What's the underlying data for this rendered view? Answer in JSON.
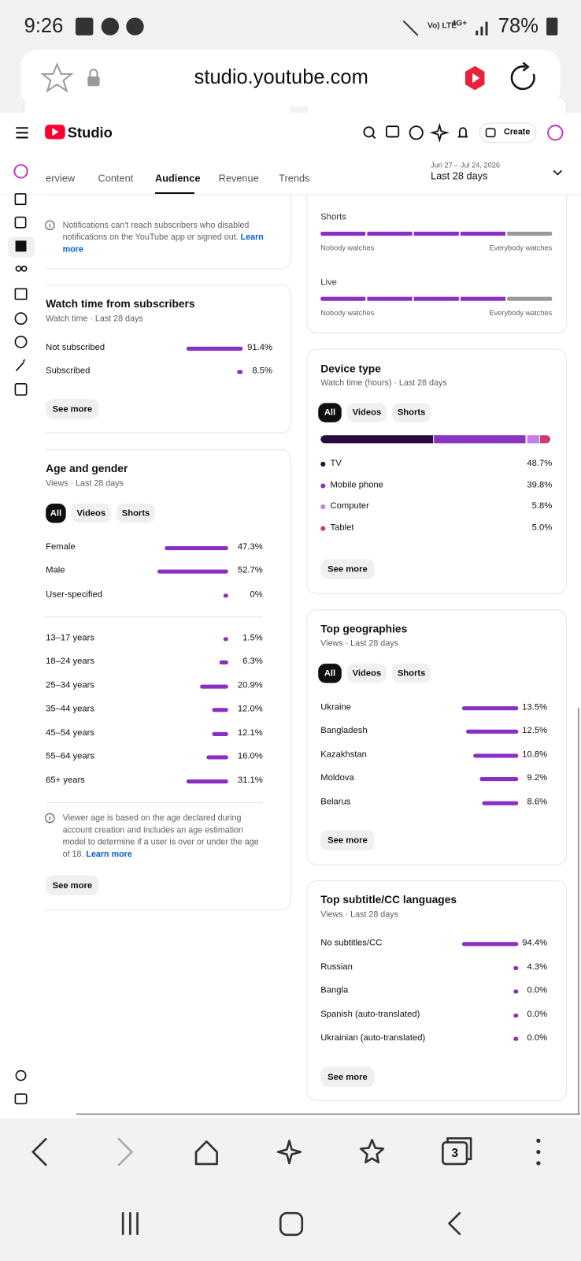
{
  "status_bar": {
    "time": "9:26",
    "network": "Vo) LTE",
    "network_2": "4G+",
    "battery": "78%"
  },
  "browser": {
    "url": "studio.youtube.com",
    "open_tabs": "3"
  },
  "header": {
    "logo": "Studio",
    "create_button": "Create"
  },
  "tabs": [
    "erview",
    "Content",
    "Audience",
    "Revenue",
    "Trends"
  ],
  "date_range": {
    "dates": "Jun 27 – Jul 24, 2026",
    "period": "Last 28 days"
  },
  "left_column": {
    "notification_note": {
      "text": "Notifications can't reach subscribers who disabled notifications on the YouTube app or signed out.",
      "link": "Learn more"
    },
    "subscribers": {
      "title": "Watch time from subscribers",
      "subtitle": "Watch time · Last 28 days",
      "bar_color": "#8b2fc2",
      "rows": [
        {
          "label": "Not subscribed",
          "value": 91.4,
          "value_label": "91.4%"
        },
        {
          "label": "Subscribed",
          "value": 8.5,
          "value_label": "8.5%"
        }
      ],
      "button": "See more"
    },
    "age_gender": {
      "title": "Age and gender",
      "subtitle": "Views · Last 28 days",
      "bar_color": "#8b2fc2",
      "filters": [
        "All",
        "Videos",
        "Shorts"
      ],
      "gender": [
        {
          "label": "Female",
          "value": 47.3,
          "value_label": "47.3%"
        },
        {
          "label": "Male",
          "value": 52.7,
          "value_label": "52.7%"
        },
        {
          "label": "User-specified",
          "value": 0,
          "value_label": "0%"
        }
      ],
      "age": [
        {
          "label": "13–17 years",
          "value": 1.5,
          "value_label": "1.5%"
        },
        {
          "label": "18–24 years",
          "value": 6.3,
          "value_label": "6.3%"
        },
        {
          "label": "25–34 years",
          "value": 20.9,
          "value_label": "20.9%"
        },
        {
          "label": "35–44 years",
          "value": 12,
          "value_label": "12.0%"
        },
        {
          "label": "45–54 years",
          "value": 12.1,
          "value_label": "12.1%"
        },
        {
          "label": "55–64 years",
          "value": 16,
          "value_label": "16.0%"
        },
        {
          "label": "65+ years",
          "value": 31.1,
          "value_label": "31.1%"
        }
      ],
      "note": "Viewer age is based on the age declared during account creation and includes an age estimation model to determine if a user is over or under the age of 18.",
      "note_link": "Learn more",
      "button": "See more"
    }
  },
  "right_column": {
    "retention": [
      {
        "label": "Shorts",
        "left": "Nobody watches",
        "right": "Everybody watches"
      },
      {
        "label": "Live",
        "left": "Nobody watches",
        "right": "Everybody watches"
      }
    ],
    "device_type": {
      "title": "Device type",
      "subtitle": "Watch time (hours) · Last 28 days",
      "filters": [
        "All",
        "Videos",
        "Shorts"
      ],
      "rows": [
        {
          "label": "TV",
          "value": 48.7,
          "value_label": "48.7%",
          "color": "#2a0b3e"
        },
        {
          "label": "Mobile phone",
          "value": 39.8,
          "value_label": "39.8%",
          "color": "#8a35c0"
        },
        {
          "label": "Computer",
          "value": 5.8,
          "value_label": "5.8%",
          "color": "#c57fe4"
        },
        {
          "label": "Tablet",
          "value": 5,
          "value_label": "5.0%",
          "color": "#cc3a78"
        }
      ],
      "button": "See more"
    },
    "top_geographies": {
      "title": "Top geographies",
      "subtitle": "Views · Last 28 days",
      "bar_color": "#8b2fc2",
      "filters": [
        "All",
        "Videos",
        "Shorts"
      ],
      "rows": [
        {
          "label": "Ukraine",
          "value": 13.5,
          "value_label": "13.5%"
        },
        {
          "label": "Bangladesh",
          "value": 12.5,
          "value_label": "12.5%"
        },
        {
          "label": "Kazakhstan",
          "value": 10.8,
          "value_label": "10.8%"
        },
        {
          "label": "Moldova",
          "value": 9.2,
          "value_label": "9.2%"
        },
        {
          "label": "Belarus",
          "value": 8.6,
          "value_label": "8.6%"
        }
      ],
      "button": "See more"
    },
    "subtitle_languages": {
      "title": "Top subtitle/CC languages",
      "subtitle": "Views · Last 28 days",
      "bar_color": "#8b2fc2",
      "rows": [
        {
          "label": "No subtitles/CC",
          "value": 94.4,
          "value_label": "94.4%"
        },
        {
          "label": "Russian",
          "value": 4.3,
          "value_label": "4.3%"
        },
        {
          "label": "Bangla",
          "value": 0,
          "value_label": "0.0%"
        },
        {
          "label": "Spanish (auto-translated)",
          "value": 0,
          "value_label": "0.0%"
        },
        {
          "label": "Ukrainian (auto-translated)",
          "value": 0,
          "value_label": "0.0%"
        }
      ],
      "button": "See more"
    }
  }
}
